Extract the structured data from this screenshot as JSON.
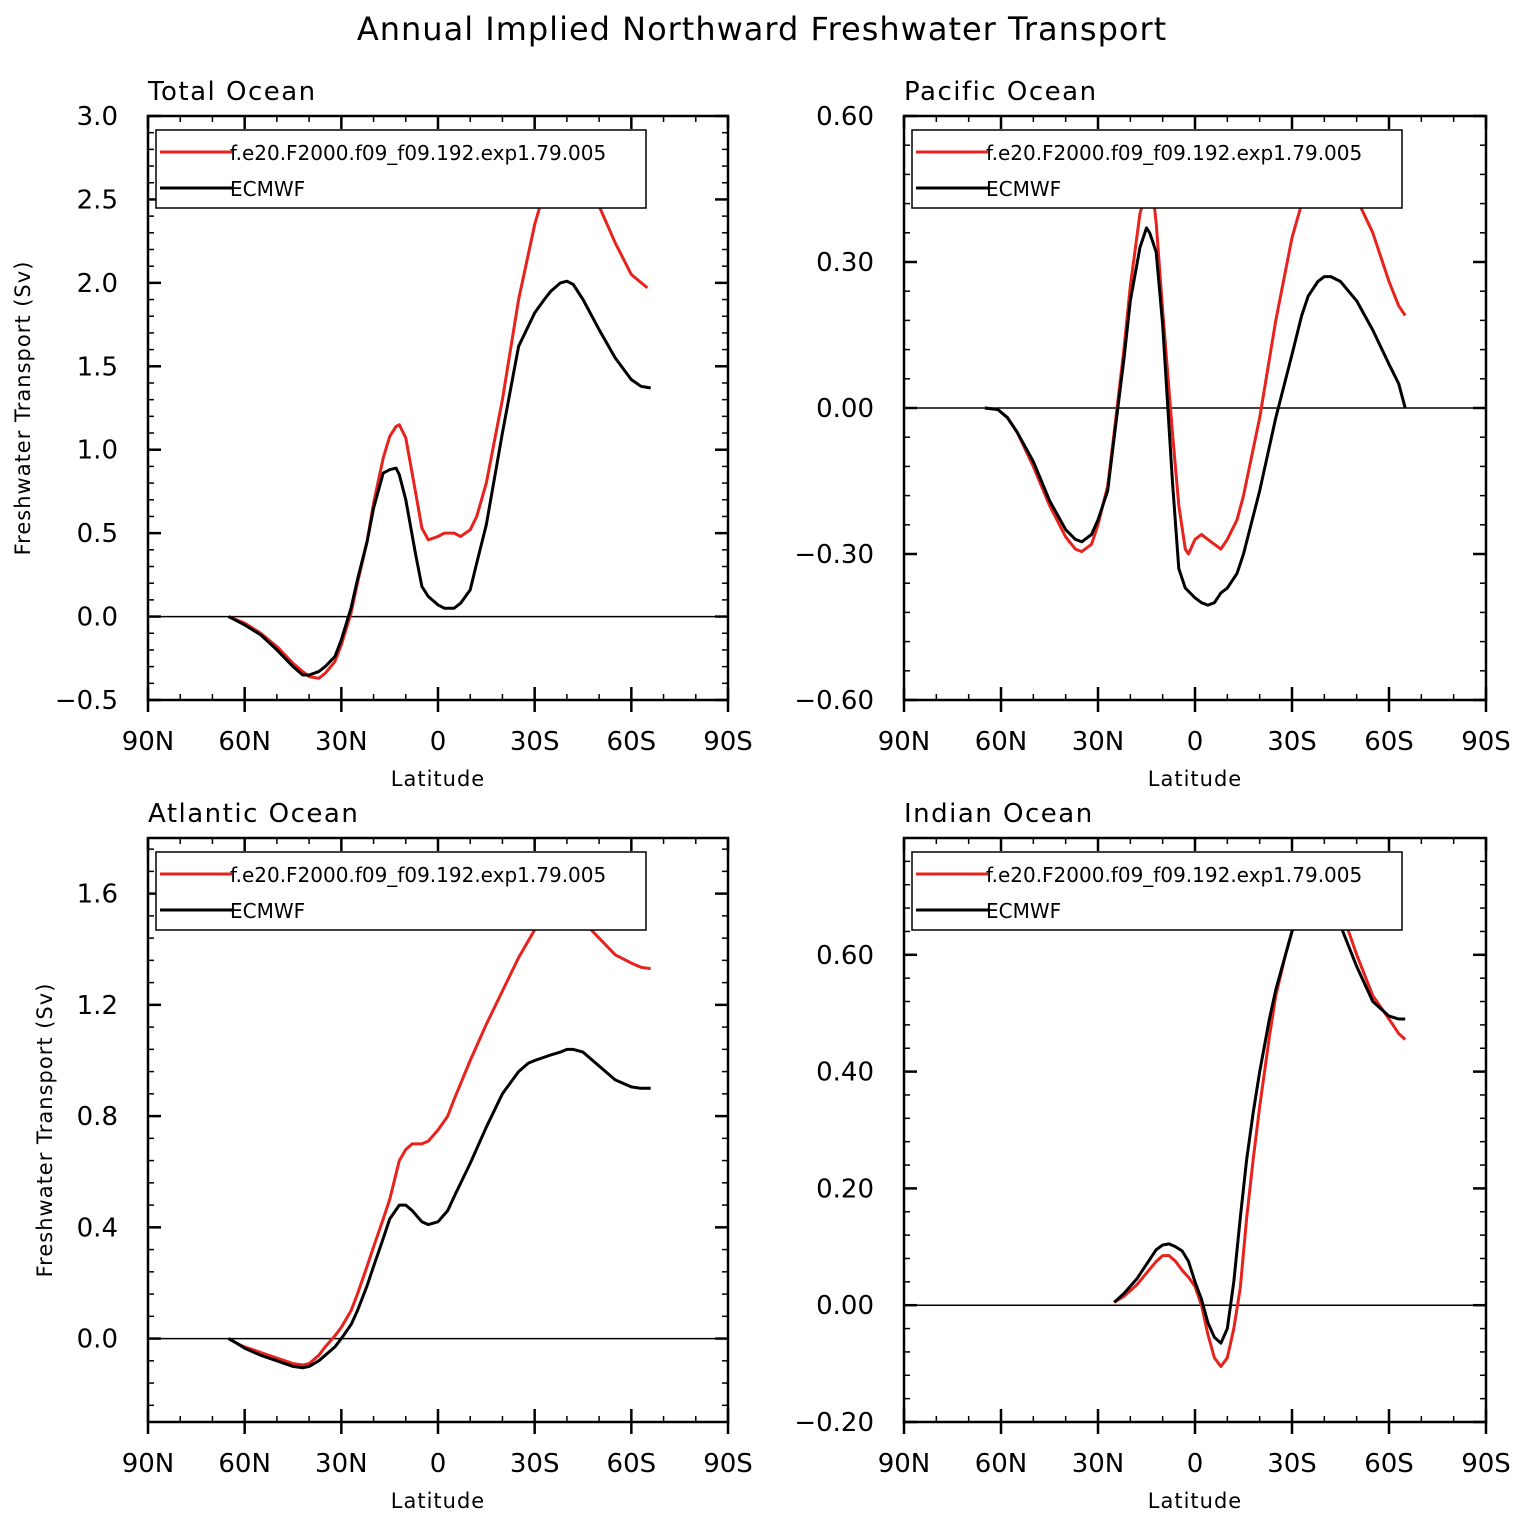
{
  "figure": {
    "title": "Annual Implied Northward Freshwater Transport"
  },
  "chart_data": [
    {
      "type": "line",
      "title": "Total Ocean",
      "xlabel": "Latitude",
      "ylabel": "Freshwater Transport (Sv)",
      "x_axis": {
        "direction": "north-to-south",
        "xlim": [
          90,
          -90
        ],
        "ticks": [
          90,
          60,
          30,
          0,
          -30,
          -60,
          -90
        ],
        "tick_labels": [
          "90N",
          "60N",
          "30N",
          "0",
          "30S",
          "60S",
          "90S"
        ]
      },
      "ylim": [
        -0.5,
        3.0
      ],
      "y_ticks": [
        -0.5,
        0.0,
        0.5,
        1.0,
        1.5,
        2.0,
        2.5,
        3.0
      ],
      "y_tick_labels": [
        "-0.5",
        "0.0",
        "0.5",
        "1.0",
        "1.5",
        "2.0",
        "2.5",
        "3.0"
      ],
      "legend_position": "top",
      "zero_line": true,
      "series": [
        {
          "name": "f.e20.F2000.f09_f09.192.exp1.79.005",
          "color": "#e8221d",
          "x": [
            65,
            60,
            55,
            50,
            45,
            42,
            40,
            37,
            35,
            32,
            30,
            27,
            25,
            22,
            20,
            17,
            15,
            13,
            12,
            10,
            7,
            5,
            3,
            0,
            -2,
            -5,
            -7,
            -10,
            -12,
            -15,
            -20,
            -25,
            -30,
            -33,
            -35,
            -38,
            -40,
            -42,
            -45,
            -50,
            -55,
            -60,
            -65
          ],
          "y": [
            0.0,
            -0.04,
            -0.1,
            -0.18,
            -0.28,
            -0.33,
            -0.36,
            -0.37,
            -0.34,
            -0.27,
            -0.17,
            0.02,
            0.2,
            0.45,
            0.68,
            0.95,
            1.08,
            1.14,
            1.15,
            1.07,
            0.75,
            0.53,
            0.46,
            0.48,
            0.5,
            0.5,
            0.48,
            0.52,
            0.6,
            0.8,
            1.3,
            1.9,
            2.35,
            2.55,
            2.65,
            2.74,
            2.76,
            2.75,
            2.68,
            2.46,
            2.24,
            2.05,
            1.97
          ]
        },
        {
          "name": "ECMWF",
          "color": "#000000",
          "x": [
            65,
            60,
            55,
            50,
            45,
            42,
            40,
            37,
            35,
            32,
            30,
            27,
            25,
            22,
            20,
            17,
            15,
            13,
            12,
            10,
            7,
            5,
            3,
            0,
            -2,
            -5,
            -7,
            -10,
            -12,
            -15,
            -20,
            -25,
            -30,
            -33,
            -35,
            -38,
            -40,
            -42,
            -45,
            -50,
            -55,
            -60,
            -63,
            -66
          ],
          "y": [
            0.0,
            -0.05,
            -0.11,
            -0.2,
            -0.3,
            -0.35,
            -0.35,
            -0.33,
            -0.3,
            -0.24,
            -0.14,
            0.05,
            0.22,
            0.45,
            0.65,
            0.86,
            0.88,
            0.89,
            0.85,
            0.7,
            0.38,
            0.18,
            0.12,
            0.07,
            0.05,
            0.05,
            0.08,
            0.16,
            0.32,
            0.55,
            1.1,
            1.62,
            1.82,
            1.9,
            1.95,
            2.0,
            2.01,
            1.99,
            1.9,
            1.72,
            1.55,
            1.42,
            1.38,
            1.37
          ]
        }
      ]
    },
    {
      "type": "line",
      "title": "Pacific Ocean",
      "xlabel": "Latitude",
      "ylabel": "",
      "x_axis": {
        "direction": "north-to-south",
        "xlim": [
          90,
          -90
        ],
        "ticks": [
          90,
          60,
          30,
          0,
          -30,
          -60,
          -90
        ],
        "tick_labels": [
          "90N",
          "60N",
          "30N",
          "0",
          "30S",
          "60S",
          "90S"
        ]
      },
      "ylim": [
        -0.6,
        0.6
      ],
      "y_ticks": [
        -0.6,
        -0.3,
        0.0,
        0.3,
        0.6
      ],
      "y_tick_labels": [
        "-0.60",
        "-0.30",
        "0.00",
        "0.30",
        "0.60"
      ],
      "legend_position": "top",
      "zero_line": true,
      "series": [
        {
          "name": "f.e20.F2000.f09_f09.192.exp1.79.005",
          "color": "#e8221d",
          "x": [
            65,
            61,
            58,
            55,
            50,
            45,
            40,
            37,
            35,
            32,
            30,
            27,
            25,
            22,
            20,
            17,
            15,
            14,
            13,
            12,
            10,
            7,
            5,
            3,
            2,
            0,
            -2,
            -4,
            -6,
            -8,
            -10,
            -13,
            -15,
            -20,
            -25,
            -30,
            -33,
            -35,
            -38,
            -40,
            -42,
            -45,
            -50,
            -55,
            -60,
            -63,
            -65
          ],
          "y": [
            0.0,
            -0.003,
            -0.02,
            -0.05,
            -0.12,
            -0.2,
            -0.265,
            -0.29,
            -0.295,
            -0.28,
            -0.24,
            -0.16,
            -0.05,
            0.12,
            0.25,
            0.4,
            0.445,
            0.45,
            0.44,
            0.38,
            0.2,
            -0.05,
            -0.2,
            -0.29,
            -0.3,
            -0.27,
            -0.26,
            -0.27,
            -0.28,
            -0.29,
            -0.27,
            -0.23,
            -0.18,
            -0.02,
            0.18,
            0.35,
            0.42,
            0.46,
            0.49,
            0.5,
            0.5,
            0.48,
            0.43,
            0.36,
            0.26,
            0.21,
            0.19
          ]
        },
        {
          "name": "ECMWF",
          "color": "#000000",
          "x": [
            65,
            61,
            58,
            55,
            50,
            45,
            40,
            37,
            35,
            32,
            30,
            27,
            25,
            22,
            20,
            17,
            15,
            14,
            13,
            12,
            10,
            7,
            5,
            3,
            0,
            -2,
            -4,
            -6,
            -8,
            -10,
            -13,
            -15,
            -20,
            -25,
            -30,
            -33,
            -35,
            -38,
            -40,
            -42,
            -45,
            -50,
            -55,
            -60,
            -63,
            -65
          ],
          "y": [
            0.0,
            -0.003,
            -0.02,
            -0.05,
            -0.11,
            -0.19,
            -0.25,
            -0.27,
            -0.275,
            -0.26,
            -0.23,
            -0.17,
            -0.06,
            0.1,
            0.22,
            0.33,
            0.37,
            0.36,
            0.34,
            0.32,
            0.17,
            -0.15,
            -0.33,
            -0.37,
            -0.39,
            -0.4,
            -0.405,
            -0.4,
            -0.38,
            -0.37,
            -0.34,
            -0.3,
            -0.17,
            -0.02,
            0.11,
            0.19,
            0.23,
            0.26,
            0.27,
            0.27,
            0.26,
            0.22,
            0.16,
            0.09,
            0.05,
            0.0
          ]
        }
      ]
    },
    {
      "type": "line",
      "title": "Atlantic Ocean",
      "xlabel": "Latitude",
      "ylabel": "Freshwater Transport (Sv)",
      "x_axis": {
        "direction": "north-to-south",
        "xlim": [
          90,
          -90
        ],
        "ticks": [
          90,
          60,
          30,
          0,
          -30,
          -60,
          -90
        ],
        "tick_labels": [
          "90N",
          "60N",
          "30N",
          "0",
          "30S",
          "60S",
          "90S"
        ]
      },
      "ylim": [
        -0.3,
        1.8
      ],
      "y_ticks": [
        0.0,
        0.4,
        0.8,
        1.2,
        1.6
      ],
      "y_tick_labels": [
        "0.0",
        "0.4",
        "0.8",
        "1.2",
        "1.6"
      ],
      "legend_position": "top",
      "zero_line": true,
      "series": [
        {
          "name": "f.e20.F2000.f09_f09.192.exp1.79.005",
          "color": "#e8221d",
          "x": [
            65,
            62,
            60,
            55,
            50,
            45,
            42,
            40,
            37,
            35,
            32,
            30,
            27,
            25,
            22,
            20,
            17,
            15,
            12,
            10,
            8,
            5,
            3,
            0,
            -3,
            -5,
            -10,
            -15,
            -20,
            -25,
            -30,
            -33,
            -35,
            -38,
            -40,
            -42,
            -45,
            -50,
            -55,
            -60,
            -63,
            -66
          ],
          "y": [
            0.0,
            -0.02,
            -0.03,
            -0.05,
            -0.07,
            -0.09,
            -0.095,
            -0.09,
            -0.06,
            -0.03,
            0.01,
            0.04,
            0.1,
            0.16,
            0.26,
            0.33,
            0.43,
            0.5,
            0.64,
            0.68,
            0.7,
            0.7,
            0.71,
            0.75,
            0.8,
            0.86,
            1.0,
            1.13,
            1.25,
            1.37,
            1.47,
            1.51,
            1.52,
            1.54,
            1.54,
            1.53,
            1.5,
            1.44,
            1.38,
            1.35,
            1.335,
            1.33
          ]
        },
        {
          "name": "ECMWF",
          "color": "#000000",
          "x": [
            65,
            62,
            60,
            55,
            50,
            45,
            42,
            40,
            37,
            35,
            32,
            30,
            27,
            25,
            22,
            20,
            17,
            15,
            12,
            10,
            8,
            5,
            3,
            0,
            -3,
            -5,
            -10,
            -15,
            -20,
            -25,
            -28,
            -30,
            -35,
            -38,
            -40,
            -42,
            -45,
            -50,
            -55,
            -60,
            -63,
            -66
          ],
          "y": [
            0.0,
            -0.02,
            -0.035,
            -0.06,
            -0.08,
            -0.1,
            -0.105,
            -0.1,
            -0.08,
            -0.06,
            -0.03,
            0.0,
            0.05,
            0.1,
            0.19,
            0.26,
            0.36,
            0.43,
            0.48,
            0.48,
            0.46,
            0.42,
            0.41,
            0.42,
            0.46,
            0.51,
            0.63,
            0.76,
            0.88,
            0.96,
            0.99,
            1.0,
            1.02,
            1.03,
            1.04,
            1.04,
            1.03,
            0.98,
            0.93,
            0.905,
            0.9,
            0.9
          ]
        }
      ]
    },
    {
      "type": "line",
      "title": "Indian Ocean",
      "xlabel": "Latitude",
      "ylabel": "",
      "x_axis": {
        "direction": "north-to-south",
        "xlim": [
          90,
          -90
        ],
        "ticks": [
          90,
          60,
          30,
          0,
          -30,
          -60,
          -90
        ],
        "tick_labels": [
          "90N",
          "60N",
          "30N",
          "0",
          "30S",
          "60S",
          "90S"
        ]
      },
      "ylim": [
        -0.2,
        0.8
      ],
      "y_ticks": [
        -0.2,
        0.0,
        0.2,
        0.4,
        0.6
      ],
      "y_tick_labels": [
        "-0.20",
        "0.00",
        "0.20",
        "0.40",
        "0.60"
      ],
      "legend_position": "top",
      "zero_line": true,
      "series": [
        {
          "name": "f.e20.F2000.f09_f09.192.exp1.79.005",
          "color": "#e8221d",
          "x": [
            25,
            22,
            18,
            15,
            12,
            10,
            8,
            6,
            4,
            2,
            0,
            -2,
            -4,
            -6,
            -8,
            -10,
            -12,
            -14,
            -16,
            -18,
            -20,
            -23,
            -25,
            -28,
            -30,
            -33,
            -35,
            -38,
            -40,
            -42,
            -45,
            -50,
            -55,
            -60,
            -63,
            -65
          ],
          "y": [
            0.005,
            0.015,
            0.035,
            0.055,
            0.075,
            0.085,
            0.085,
            0.075,
            0.06,
            0.048,
            0.032,
            0.0,
            -0.05,
            -0.09,
            -0.105,
            -0.09,
            -0.04,
            0.03,
            0.15,
            0.25,
            0.34,
            0.46,
            0.53,
            0.6,
            0.64,
            0.68,
            0.71,
            0.725,
            0.725,
            0.715,
            0.68,
            0.6,
            0.53,
            0.49,
            0.465,
            0.455
          ]
        },
        {
          "name": "ECMWF",
          "color": "#000000",
          "x": [
            25,
            22,
            18,
            15,
            12,
            10,
            8,
            6,
            4,
            2,
            0,
            -2,
            -4,
            -6,
            -8,
            -10,
            -12,
            -14,
            -16,
            -18,
            -20,
            -23,
            -25,
            -28,
            -30,
            -33,
            -35,
            -38,
            -40,
            -42,
            -45,
            -50,
            -55,
            -60,
            -63,
            -65
          ],
          "y": [
            0.005,
            0.02,
            0.045,
            0.07,
            0.095,
            0.103,
            0.105,
            0.1,
            0.093,
            0.075,
            0.04,
            0.01,
            -0.03,
            -0.055,
            -0.065,
            -0.04,
            0.04,
            0.15,
            0.25,
            0.33,
            0.4,
            0.49,
            0.54,
            0.6,
            0.64,
            0.675,
            0.7,
            0.705,
            0.7,
            0.685,
            0.65,
            0.58,
            0.52,
            0.495,
            0.49,
            0.49
          ]
        }
      ]
    }
  ]
}
